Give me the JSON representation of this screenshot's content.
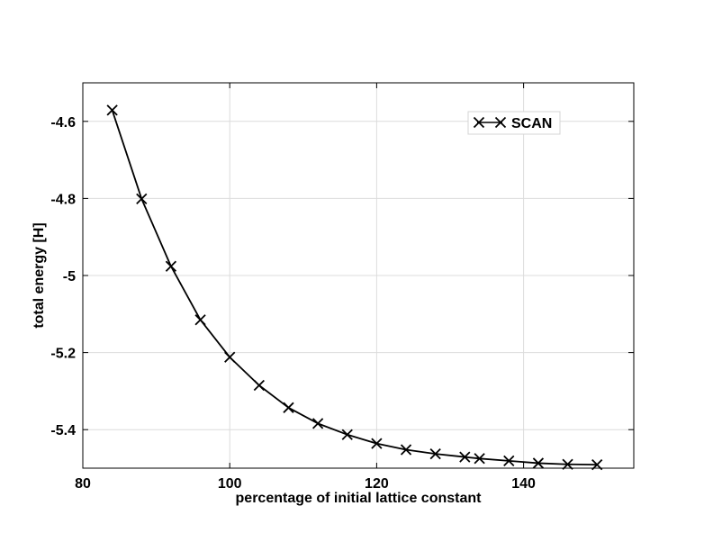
{
  "chart_data": {
    "type": "line",
    "title": "",
    "xlabel": "percentage of initial lattice constant",
    "ylabel": "total energy [H]",
    "xlim": [
      80,
      155
    ],
    "ylim": [
      -5.5,
      -4.5
    ],
    "xticks": [
      80,
      100,
      120,
      140
    ],
    "yticks": [
      -5.4,
      -5.2,
      -5,
      -4.8,
      -4.6
    ],
    "ytick_labels": [
      "-5.4",
      "-5.2",
      "-5",
      "-4.8",
      "-4.6"
    ],
    "grid": true,
    "legend_position": "top-right",
    "series": [
      {
        "name": "SCAN",
        "color": "#000000",
        "marker": "x",
        "x": [
          84,
          88,
          92,
          96,
          100,
          104,
          108,
          112,
          116,
          120,
          124,
          128,
          132,
          134,
          138,
          142,
          146,
          150
        ],
        "y": [
          -4.571,
          -4.801,
          -4.976,
          -5.115,
          -5.212,
          -5.285,
          -5.343,
          -5.384,
          -5.413,
          -5.436,
          -5.452,
          -5.463,
          -5.471,
          -5.475,
          -5.481,
          -5.487,
          -5.49,
          -5.491
        ]
      }
    ]
  }
}
